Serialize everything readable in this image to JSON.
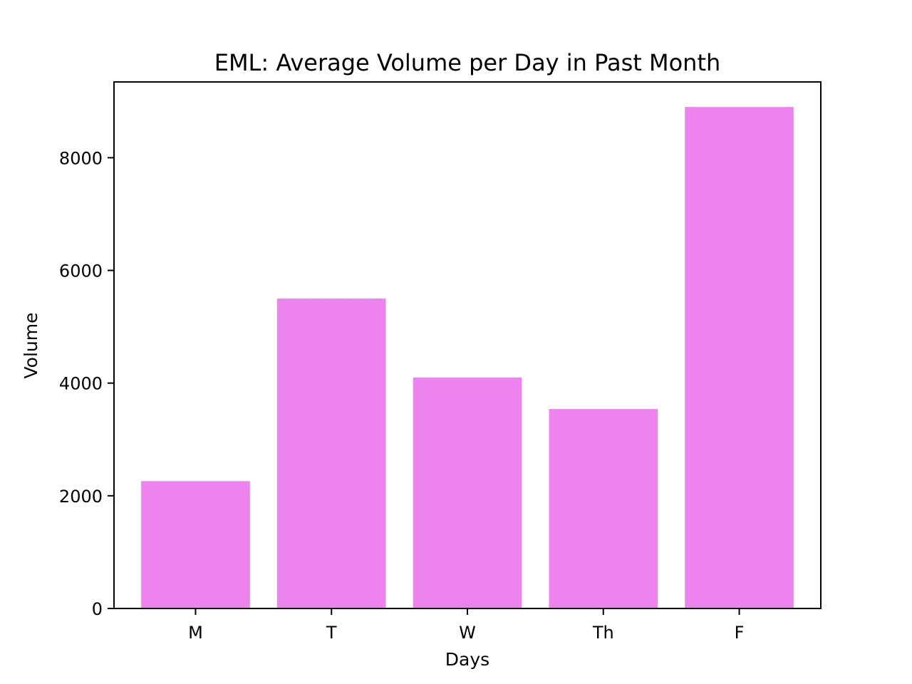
{
  "chart_data": {
    "type": "bar",
    "title": "EML: Average Volume per Day in Past Month",
    "xlabel": "Days",
    "ylabel": "Volume",
    "categories": [
      "M",
      "T",
      "W",
      "Th",
      "F"
    ],
    "values": [
      2260,
      5500,
      4100,
      3540,
      8900
    ],
    "ylim": [
      0,
      9345
    ],
    "yticks": [
      0,
      2000,
      4000,
      6000,
      8000
    ],
    "bar_color": "#ee82ee",
    "grid": false,
    "legend": "none"
  }
}
